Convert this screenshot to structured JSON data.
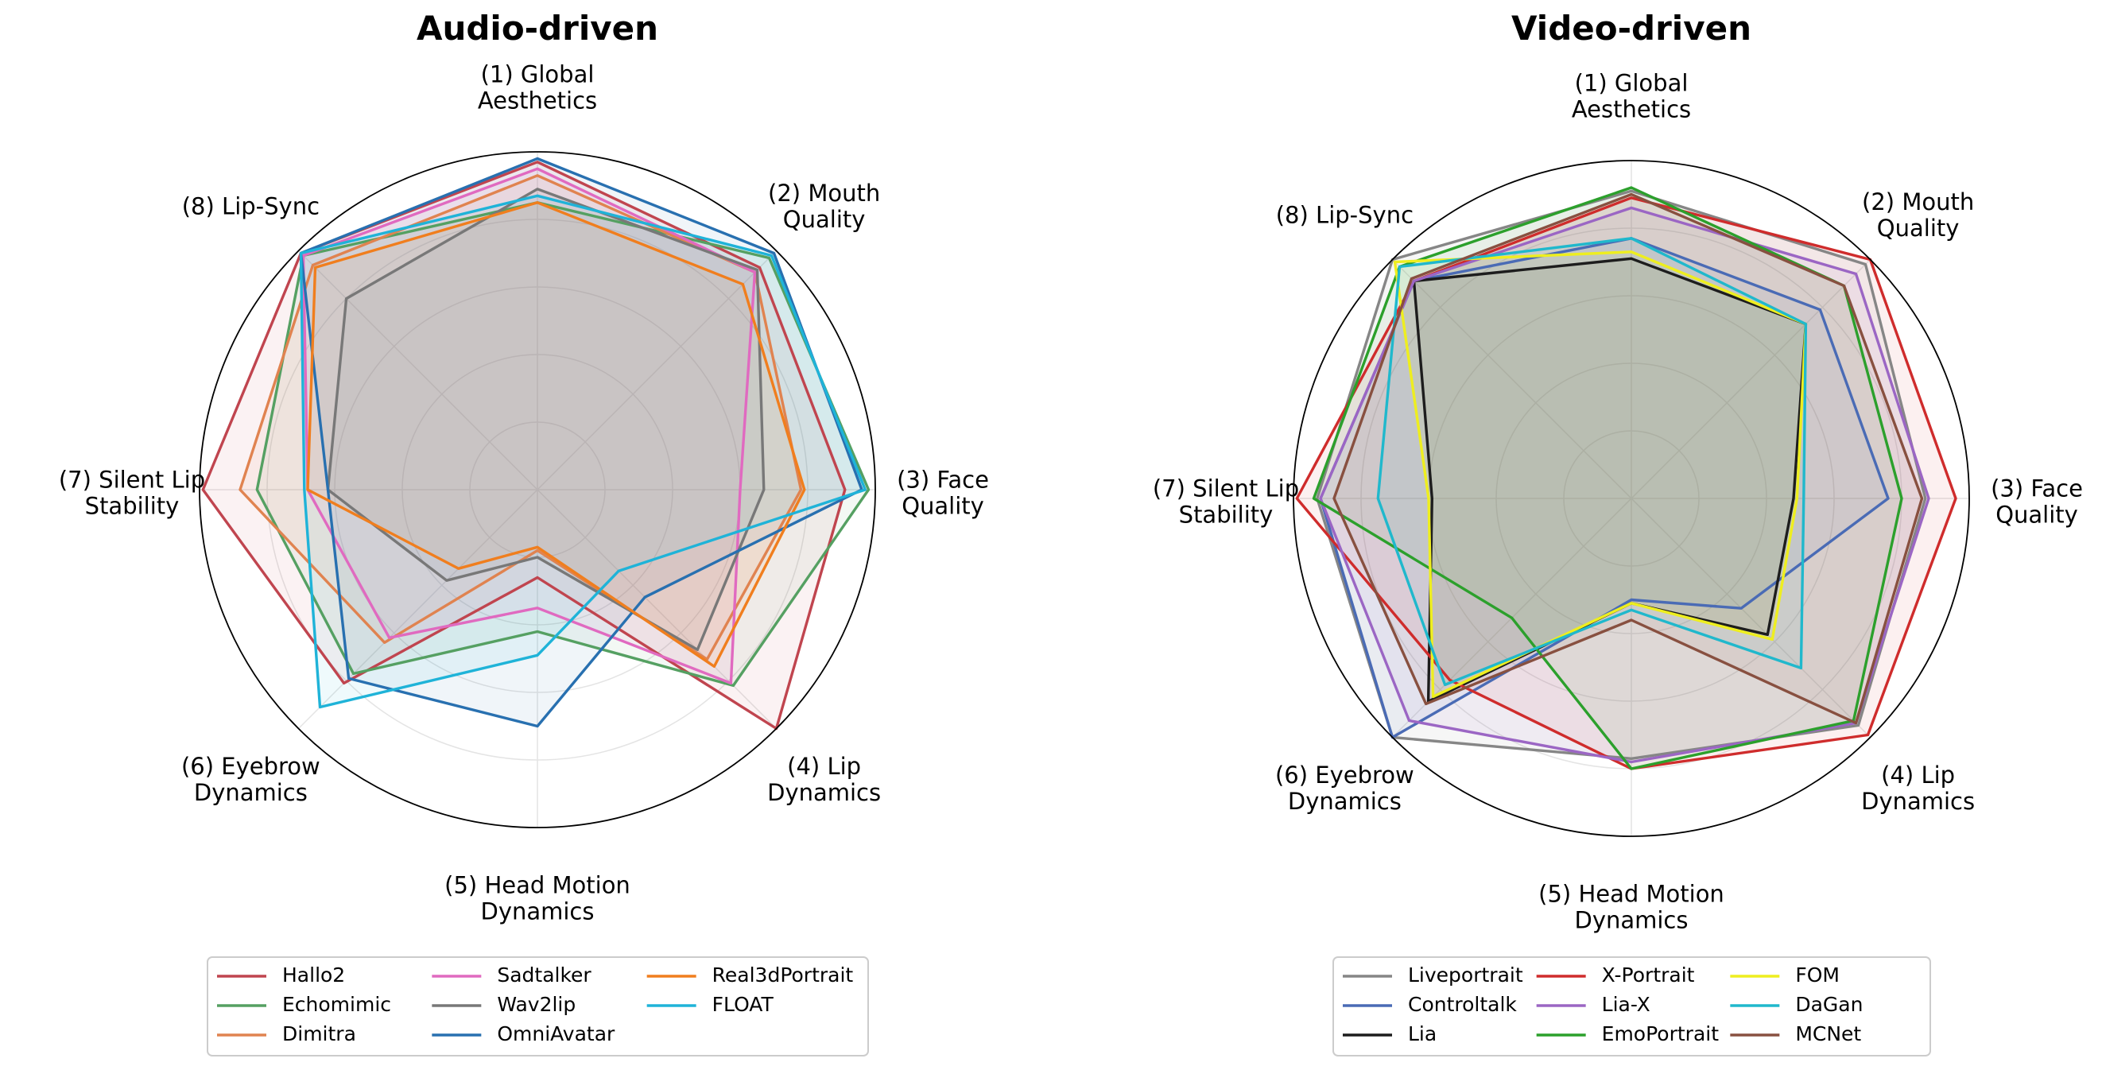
{
  "chart_data": [
    {
      "type": "radar",
      "title": "Audio-driven",
      "axes": [
        [
          "(1) Global",
          "Aesthetics"
        ],
        [
          "(2) Mouth",
          "Quality"
        ],
        [
          "(3) Face",
          "Quality"
        ],
        [
          "(4) Lip",
          "Dynamics"
        ],
        [
          "(5) Head Motion",
          "Dynamics"
        ],
        [
          "(6) Eyebrow",
          "Dynamics"
        ],
        [
          "(7) Silent Lip",
          "Stability"
        ],
        [
          "(8) Lip-Sync"
        ]
      ],
      "rlim": [
        0,
        1
      ],
      "grid": true,
      "legend_position": "bottom",
      "series": [
        {
          "name": "Hallo2",
          "color": "#c0454f",
          "values": [
            0.97,
            0.93,
            0.91,
            1.0,
            0.26,
            0.81,
            0.99,
            0.99
          ]
        },
        {
          "name": "Echomimic",
          "color": "#55a062",
          "values": [
            0.85,
            0.97,
            0.98,
            0.82,
            0.42,
            0.77,
            0.83,
            0.98
          ]
        },
        {
          "name": "Dimitra",
          "color": "#e08350",
          "values": [
            0.93,
            0.91,
            0.78,
            0.71,
            0.18,
            0.64,
            0.88,
            0.94
          ]
        },
        {
          "name": "Sadtalker",
          "color": "#e06ac0",
          "values": [
            0.95,
            0.91,
            0.6,
            0.81,
            0.35,
            0.62,
            0.68,
            0.98
          ]
        },
        {
          "name": "Wav2lip",
          "color": "#787878",
          "values": [
            0.89,
            0.92,
            0.67,
            0.67,
            0.2,
            0.38,
            0.62,
            0.8
          ]
        },
        {
          "name": "OmniAvatar",
          "color": "#2870b0",
          "values": [
            0.98,
            0.99,
            0.96,
            0.45,
            0.7,
            0.79,
            0.62,
            0.99
          ]
        },
        {
          "name": "Real3dPortrait",
          "color": "#f07e1e",
          "values": [
            0.85,
            0.86,
            0.79,
            0.74,
            0.17,
            0.33,
            0.68,
            0.93
          ]
        },
        {
          "name": "FLOAT",
          "color": "#1fb3d8",
          "values": [
            0.87,
            0.98,
            0.97,
            0.34,
            0.49,
            0.91,
            0.69,
            0.99
          ]
        }
      ]
    },
    {
      "type": "radar",
      "title": "Video-driven",
      "axes": [
        [
          "(1) Global",
          "Aesthetics"
        ],
        [
          "(2) Mouth",
          "Quality"
        ],
        [
          "(3) Face",
          "Quality"
        ],
        [
          "(4) Lip",
          "Dynamics"
        ],
        [
          "(5) Head Motion",
          "Dynamics"
        ],
        [
          "(6) Eyebrow",
          "Dynamics"
        ],
        [
          "(7) Silent Lip",
          "Stability"
        ],
        [
          "(8) Lip-Sync"
        ]
      ],
      "rlim": [
        0,
        1
      ],
      "grid": true,
      "legend_position": "bottom",
      "series": [
        {
          "name": "Liveportrait",
          "color": "#868686",
          "values": [
            0.91,
            0.98,
            0.87,
            0.95,
            0.77,
            1.0,
            0.93,
            1.0
          ]
        },
        {
          "name": "Controltalk",
          "color": "#4a6bb5",
          "values": [
            0.77,
            0.79,
            0.76,
            0.46,
            0.3,
            1.0,
            0.92,
            0.91
          ]
        },
        {
          "name": "Lia",
          "color": "#1d1d1d",
          "values": [
            0.71,
            0.73,
            0.48,
            0.57,
            0.31,
            0.85,
            0.59,
            0.91
          ]
        },
        {
          "name": "X-Portrait",
          "color": "#cf2c2c",
          "values": [
            0.89,
            1.0,
            0.96,
            0.99,
            0.8,
            0.76,
            0.99,
            0.91
          ]
        },
        {
          "name": "Lia-X",
          "color": "#9b66c4",
          "values": [
            0.86,
            0.94,
            0.88,
            0.94,
            0.78,
            0.93,
            0.92,
            0.91
          ]
        },
        {
          "name": "EmoPortrait",
          "color": "#2ca02c",
          "values": [
            0.92,
            0.89,
            0.8,
            0.93,
            0.8,
            0.5,
            0.94,
            0.97
          ]
        },
        {
          "name": "FOM",
          "color": "#eeee1f",
          "values": [
            0.73,
            0.73,
            0.49,
            0.59,
            0.31,
            0.83,
            0.6,
            0.99
          ]
        },
        {
          "name": "DaGan",
          "color": "#20b8cc",
          "values": [
            0.77,
            0.73,
            0.51,
            0.71,
            0.33,
            0.78,
            0.75,
            0.97
          ]
        },
        {
          "name": "MCNet",
          "color": "#885040",
          "values": [
            0.9,
            0.89,
            0.86,
            0.94,
            0.36,
            0.86,
            0.88,
            0.92
          ]
        }
      ]
    }
  ]
}
